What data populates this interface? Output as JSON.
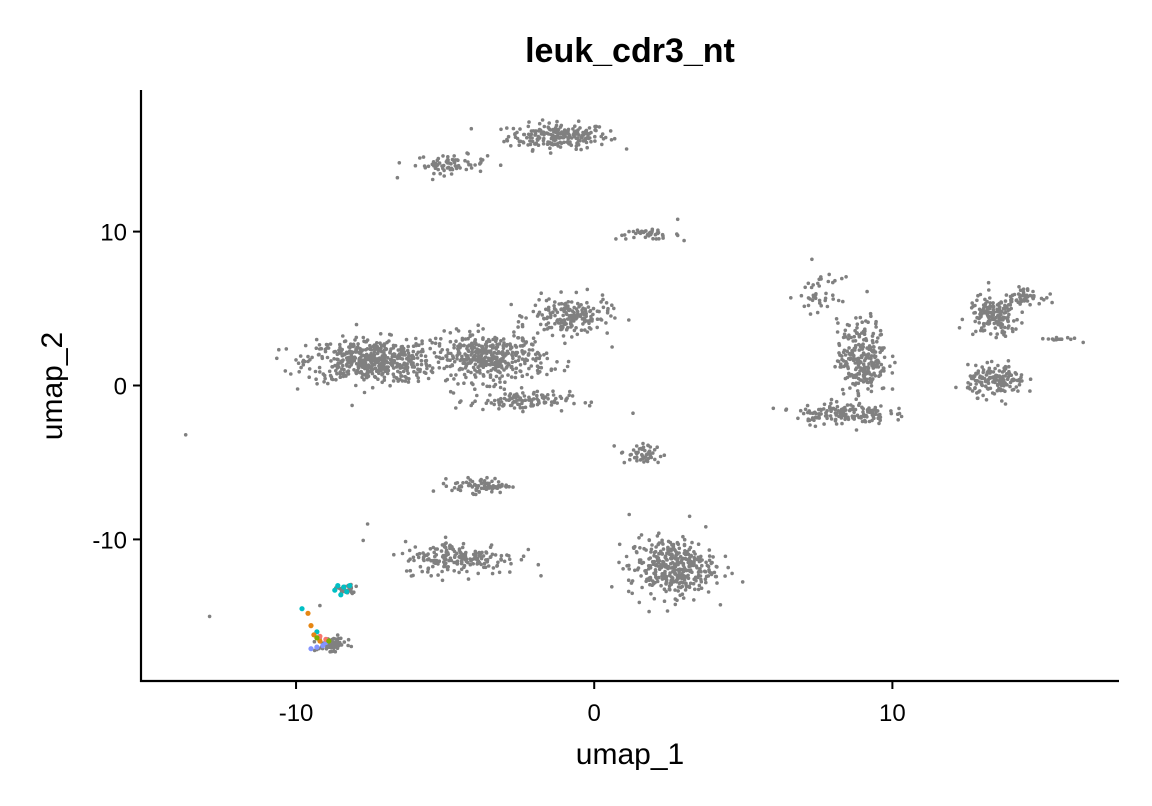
{
  "chart_data": {
    "type": "scatter",
    "title": "leuk_cdr3_nt",
    "xlabel": "umap_1",
    "ylabel": "umap_2",
    "xlim": [
      -15.2,
      17.6
    ],
    "ylim": [
      -19.2,
      19.2
    ],
    "x_ticks": [
      -10,
      0,
      10
    ],
    "x_tick_labels": [
      "-10",
      "0",
      "10"
    ],
    "y_ticks": [
      -10,
      0,
      10
    ],
    "y_tick_labels": [
      "-10",
      "0",
      "10"
    ],
    "grid": false,
    "legend": "none",
    "background_color": "#808080",
    "highlight_colors": [
      "#00BFC4",
      "#E68613",
      "#8494FF",
      "#F8766D",
      "#00A9FF",
      "#7CAE00",
      "#C77CFF"
    ],
    "series": [
      {
        "color": "#808080",
        "clusters": [
          {
            "cx": -1.2,
            "cy": 16.2,
            "sx": 1.4,
            "sy": 0.7,
            "n": 220
          },
          {
            "cx": -4.8,
            "cy": 14.4,
            "sx": 1.0,
            "sy": 0.5,
            "n": 70
          },
          {
            "cx": 1.8,
            "cy": 9.8,
            "sx": 0.9,
            "sy": 0.25,
            "n": 40
          },
          {
            "cx": -7.5,
            "cy": 1.6,
            "sx": 1.8,
            "sy": 1.2,
            "n": 520
          },
          {
            "cx": -3.5,
            "cy": 1.8,
            "sx": 1.6,
            "sy": 1.3,
            "n": 420
          },
          {
            "cx": -0.8,
            "cy": 4.5,
            "sx": 1.1,
            "sy": 1.0,
            "n": 180
          },
          {
            "cx": -2.5,
            "cy": -1.0,
            "sx": 1.4,
            "sy": 0.5,
            "n": 110
          },
          {
            "cx": 1.6,
            "cy": -4.5,
            "sx": 0.6,
            "sy": 0.6,
            "n": 50
          },
          {
            "cx": -3.8,
            "cy": -6.5,
            "sx": 0.8,
            "sy": 0.4,
            "n": 80
          },
          {
            "cx": -4.5,
            "cy": -11.2,
            "sx": 1.6,
            "sy": 0.9,
            "n": 200
          },
          {
            "cx": 2.6,
            "cy": -11.8,
            "sx": 1.2,
            "sy": 1.6,
            "n": 380
          },
          {
            "cx": 9.0,
            "cy": 1.8,
            "sx": 0.7,
            "sy": 2.0,
            "n": 260
          },
          {
            "cx": 8.3,
            "cy": -1.8,
            "sx": 1.3,
            "sy": 0.6,
            "n": 150
          },
          {
            "cx": 13.5,
            "cy": 0.3,
            "sx": 0.8,
            "sy": 0.8,
            "n": 160
          },
          {
            "cx": 13.4,
            "cy": 4.5,
            "sx": 0.7,
            "sy": 1.1,
            "n": 160
          },
          {
            "cx": 14.4,
            "cy": 5.8,
            "sx": 0.5,
            "sy": 0.4,
            "n": 50
          },
          {
            "cx": 7.6,
            "cy": 5.8,
            "sx": 0.6,
            "sy": 1.0,
            "n": 40
          },
          {
            "cx": -8.8,
            "cy": -16.8,
            "sx": 0.4,
            "sy": 0.35,
            "n": 90
          },
          {
            "cx": -8.3,
            "cy": -13.3,
            "sx": 0.3,
            "sy": 0.3,
            "n": 30
          },
          {
            "cx": 15.6,
            "cy": 3.0,
            "sx": 0.4,
            "sy": 0.15,
            "n": 12
          }
        ],
        "points": [
          {
            "x": -13.7,
            "y": -3.2
          },
          {
            "x": -12.9,
            "y": -15.0
          },
          {
            "x": -9.2,
            "y": -14.3
          },
          {
            "x": 3.2,
            "y": -8.5
          },
          {
            "x": 2.8,
            "y": 10.8
          },
          {
            "x": 7.3,
            "y": 8.2
          },
          {
            "x": 16.4,
            "y": 2.8
          },
          {
            "x": -6.6,
            "y": 13.5
          },
          {
            "x": -7.6,
            "y": -9.0
          },
          {
            "x": 1.3,
            "y": -1.8
          },
          {
            "x": 0.6,
            "y": 2.5
          }
        ]
      },
      {
        "color": "#00BFC4",
        "points": [
          {
            "x": -8.6,
            "y": -13.0
          },
          {
            "x": -8.4,
            "y": -13.1
          },
          {
            "x": -8.3,
            "y": -13.4
          },
          {
            "x": -8.5,
            "y": -13.6
          },
          {
            "x": -8.2,
            "y": -13.0
          },
          {
            "x": -8.7,
            "y": -13.3
          },
          {
            "x": -9.8,
            "y": -14.5
          },
          {
            "x": -9.3,
            "y": -16.0
          }
        ]
      },
      {
        "color": "#E68613",
        "points": [
          {
            "x": -9.6,
            "y": -14.8
          },
          {
            "x": -9.5,
            "y": -15.6
          },
          {
            "x": -9.4,
            "y": -16.2
          },
          {
            "x": -9.2,
            "y": -16.6
          }
        ]
      },
      {
        "color": "#8494FF",
        "points": [
          {
            "x": -9.5,
            "y": -17.1
          },
          {
            "x": -9.3,
            "y": -17.0
          },
          {
            "x": -9.1,
            "y": -16.9
          },
          {
            "x": -9.0,
            "y": -16.7
          }
        ]
      },
      {
        "color": "#F8766D",
        "points": [
          {
            "x": -9.0,
            "y": -16.5
          },
          {
            "x": -9.2,
            "y": -16.3
          }
        ]
      },
      {
        "color": "#7CAE00",
        "points": [
          {
            "x": -9.3,
            "y": -16.4
          },
          {
            "x": -8.9,
            "y": -16.6
          }
        ]
      }
    ]
  }
}
